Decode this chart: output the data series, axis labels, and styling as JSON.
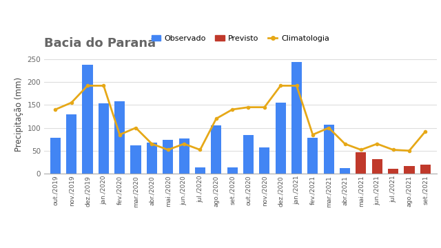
{
  "title": "Bacia do Paraná",
  "ylabel": "Precipitação (mm)",
  "categories": [
    "out./2019",
    "nov./2019",
    "dez./2019",
    "jan./2020",
    "fev./2020",
    "mar./2020",
    "abr./2020",
    "mai./2020",
    "jun./2020",
    "jul./2020",
    "ago./2020",
    "set./2020",
    "out./2020",
    "nov./2020",
    "dez./2020",
    "jan./2021",
    "fev./2021",
    "mar./2021",
    "abr./2021",
    "mai./2021",
    "jun./2021",
    "jul./2021",
    "ago./2021",
    "set./2021"
  ],
  "observed": [
    78,
    130,
    238,
    153,
    158,
    61,
    68,
    73,
    76,
    13,
    105,
    13,
    85,
    57,
    155,
    243,
    78,
    107,
    12,
    null,
    null,
    null,
    null,
    null
  ],
  "previsto": [
    null,
    null,
    null,
    null,
    null,
    null,
    null,
    null,
    null,
    null,
    null,
    null,
    null,
    null,
    null,
    null,
    null,
    null,
    null,
    46,
    31,
    11,
    16,
    19
  ],
  "climatologia": [
    140,
    155,
    192,
    192,
    85,
    100,
    65,
    52,
    65,
    52,
    120,
    140,
    145,
    145,
    192,
    192,
    85,
    100,
    65,
    52,
    65,
    52,
    50,
    92
  ],
  "observed_color": "#4285F4",
  "previsto_color": "#C0392B",
  "climatologia_color": "#E6A817",
  "background_color": "#ffffff",
  "title_color": "#666666",
  "ylabel_color": "#444444",
  "ylim": [
    0,
    260
  ],
  "yticks": [
    0,
    50,
    100,
    150,
    200,
    250
  ]
}
